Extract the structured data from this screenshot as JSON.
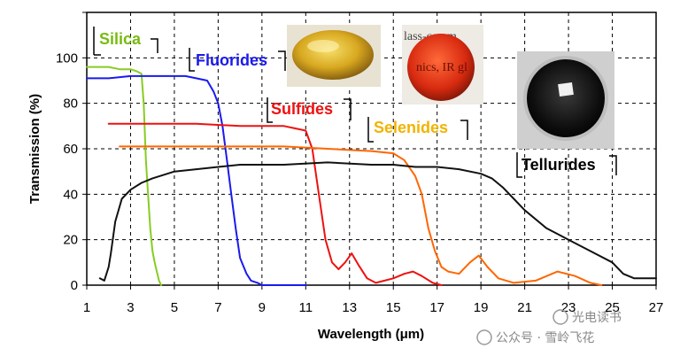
{
  "chart_data": {
    "type": "line",
    "xlabel": "Wavelength (μm)",
    "ylabel": "Transmission (%)",
    "xlim": [
      1,
      27
    ],
    "ylim": [
      0,
      120
    ],
    "xticks": [
      1,
      3,
      5,
      7,
      9,
      11,
      13,
      15,
      17,
      19,
      21,
      23,
      25,
      27
    ],
    "yticks": [
      0,
      20,
      40,
      60,
      80,
      100
    ],
    "grid": true,
    "series": [
      {
        "name": "Silica",
        "color": "#88cc22",
        "x": [
          1.0,
          1.5,
          2.0,
          2.5,
          3.0,
          3.3,
          3.5,
          3.6,
          3.7,
          3.8,
          3.9,
          4.0,
          4.1,
          4.2,
          4.3,
          4.4
        ],
        "y": [
          96,
          96,
          96,
          95,
          95,
          94,
          93,
          80,
          55,
          40,
          25,
          15,
          10,
          6,
          2,
          0
        ]
      },
      {
        "name": "Fluorides",
        "color": "#1a1aee",
        "x": [
          1.0,
          2.0,
          3.0,
          4.0,
          5.0,
          5.5,
          6.0,
          6.5,
          6.8,
          7.0,
          7.2,
          7.4,
          7.6,
          7.8,
          8.0,
          8.3,
          8.5,
          8.8,
          9.0,
          10.0,
          11.0
        ],
        "y": [
          91,
          91,
          92,
          92,
          92,
          92,
          91,
          90,
          85,
          80,
          70,
          55,
          40,
          25,
          12,
          5,
          2,
          1,
          0,
          0,
          0
        ]
      },
      {
        "name": "Sulfides",
        "color": "#ee1111",
        "x": [
          2.0,
          4.0,
          6.0,
          8.0,
          10.0,
          10.5,
          11.0,
          11.3,
          11.6,
          11.9,
          12.2,
          12.5,
          12.8,
          13.1,
          13.4,
          13.8,
          14.2,
          14.6,
          15.0,
          15.5,
          15.9,
          16.3,
          16.8,
          17.2
        ],
        "y": [
          71,
          71,
          71,
          70,
          70,
          69,
          68,
          60,
          40,
          20,
          10,
          7,
          10,
          14,
          9,
          3,
          1,
          2,
          3,
          5,
          6,
          4,
          1,
          0
        ]
      },
      {
        "name": "Selenides",
        "color": "#ff6600",
        "x": [
          2.5,
          4.0,
          6.0,
          8.0,
          10.0,
          12.0,
          14.0,
          15.0,
          15.5,
          16.0,
          16.3,
          16.6,
          16.9,
          17.2,
          17.5,
          18.0,
          18.5,
          18.9,
          19.3,
          19.8,
          20.5,
          21.5,
          22.5,
          23.3,
          24.0,
          24.5
        ],
        "y": [
          61,
          61,
          61,
          61,
          61,
          60,
          59,
          58,
          55,
          48,
          40,
          25,
          15,
          8,
          6,
          5,
          10,
          13,
          8,
          3,
          1,
          2,
          6,
          4,
          1,
          0
        ]
      },
      {
        "name": "Tellurides",
        "color": "#111111",
        "x": [
          1.6,
          1.8,
          2.0,
          2.1,
          2.3,
          2.6,
          3.0,
          3.5,
          4.0,
          5.0,
          6.0,
          7.0,
          8.0,
          10.0,
          12.0,
          14.0,
          15.0,
          16.0,
          17.0,
          18.0,
          19.0,
          19.5,
          20.0,
          20.5,
          21.0,
          22.0,
          23.0,
          24.0,
          25.0,
          25.5,
          26.0,
          27.0
        ],
        "y": [
          3,
          2,
          8,
          14,
          28,
          38,
          42,
          45,
          47,
          50,
          51,
          52,
          53,
          53,
          54,
          53,
          53,
          52,
          52,
          51,
          49,
          47,
          43,
          38,
          33,
          25,
          20,
          15,
          10,
          5,
          3,
          3
        ]
      }
    ],
    "annotations": [
      {
        "text": "Silica",
        "series": 0
      },
      {
        "text": "Fluorides",
        "series": 1
      },
      {
        "text": "Sulfides",
        "series": 2
      },
      {
        "text": "Selenides",
        "series": 3
      },
      {
        "text": "Tellurides",
        "series": 4
      }
    ]
  },
  "photos": {
    "photo2_text_top": "lass-ceram",
    "photo2_text_mid": "nics, IR gl"
  },
  "watermark": {
    "line1": "光电读书",
    "line2": "公众号 · 雪岭飞花"
  }
}
